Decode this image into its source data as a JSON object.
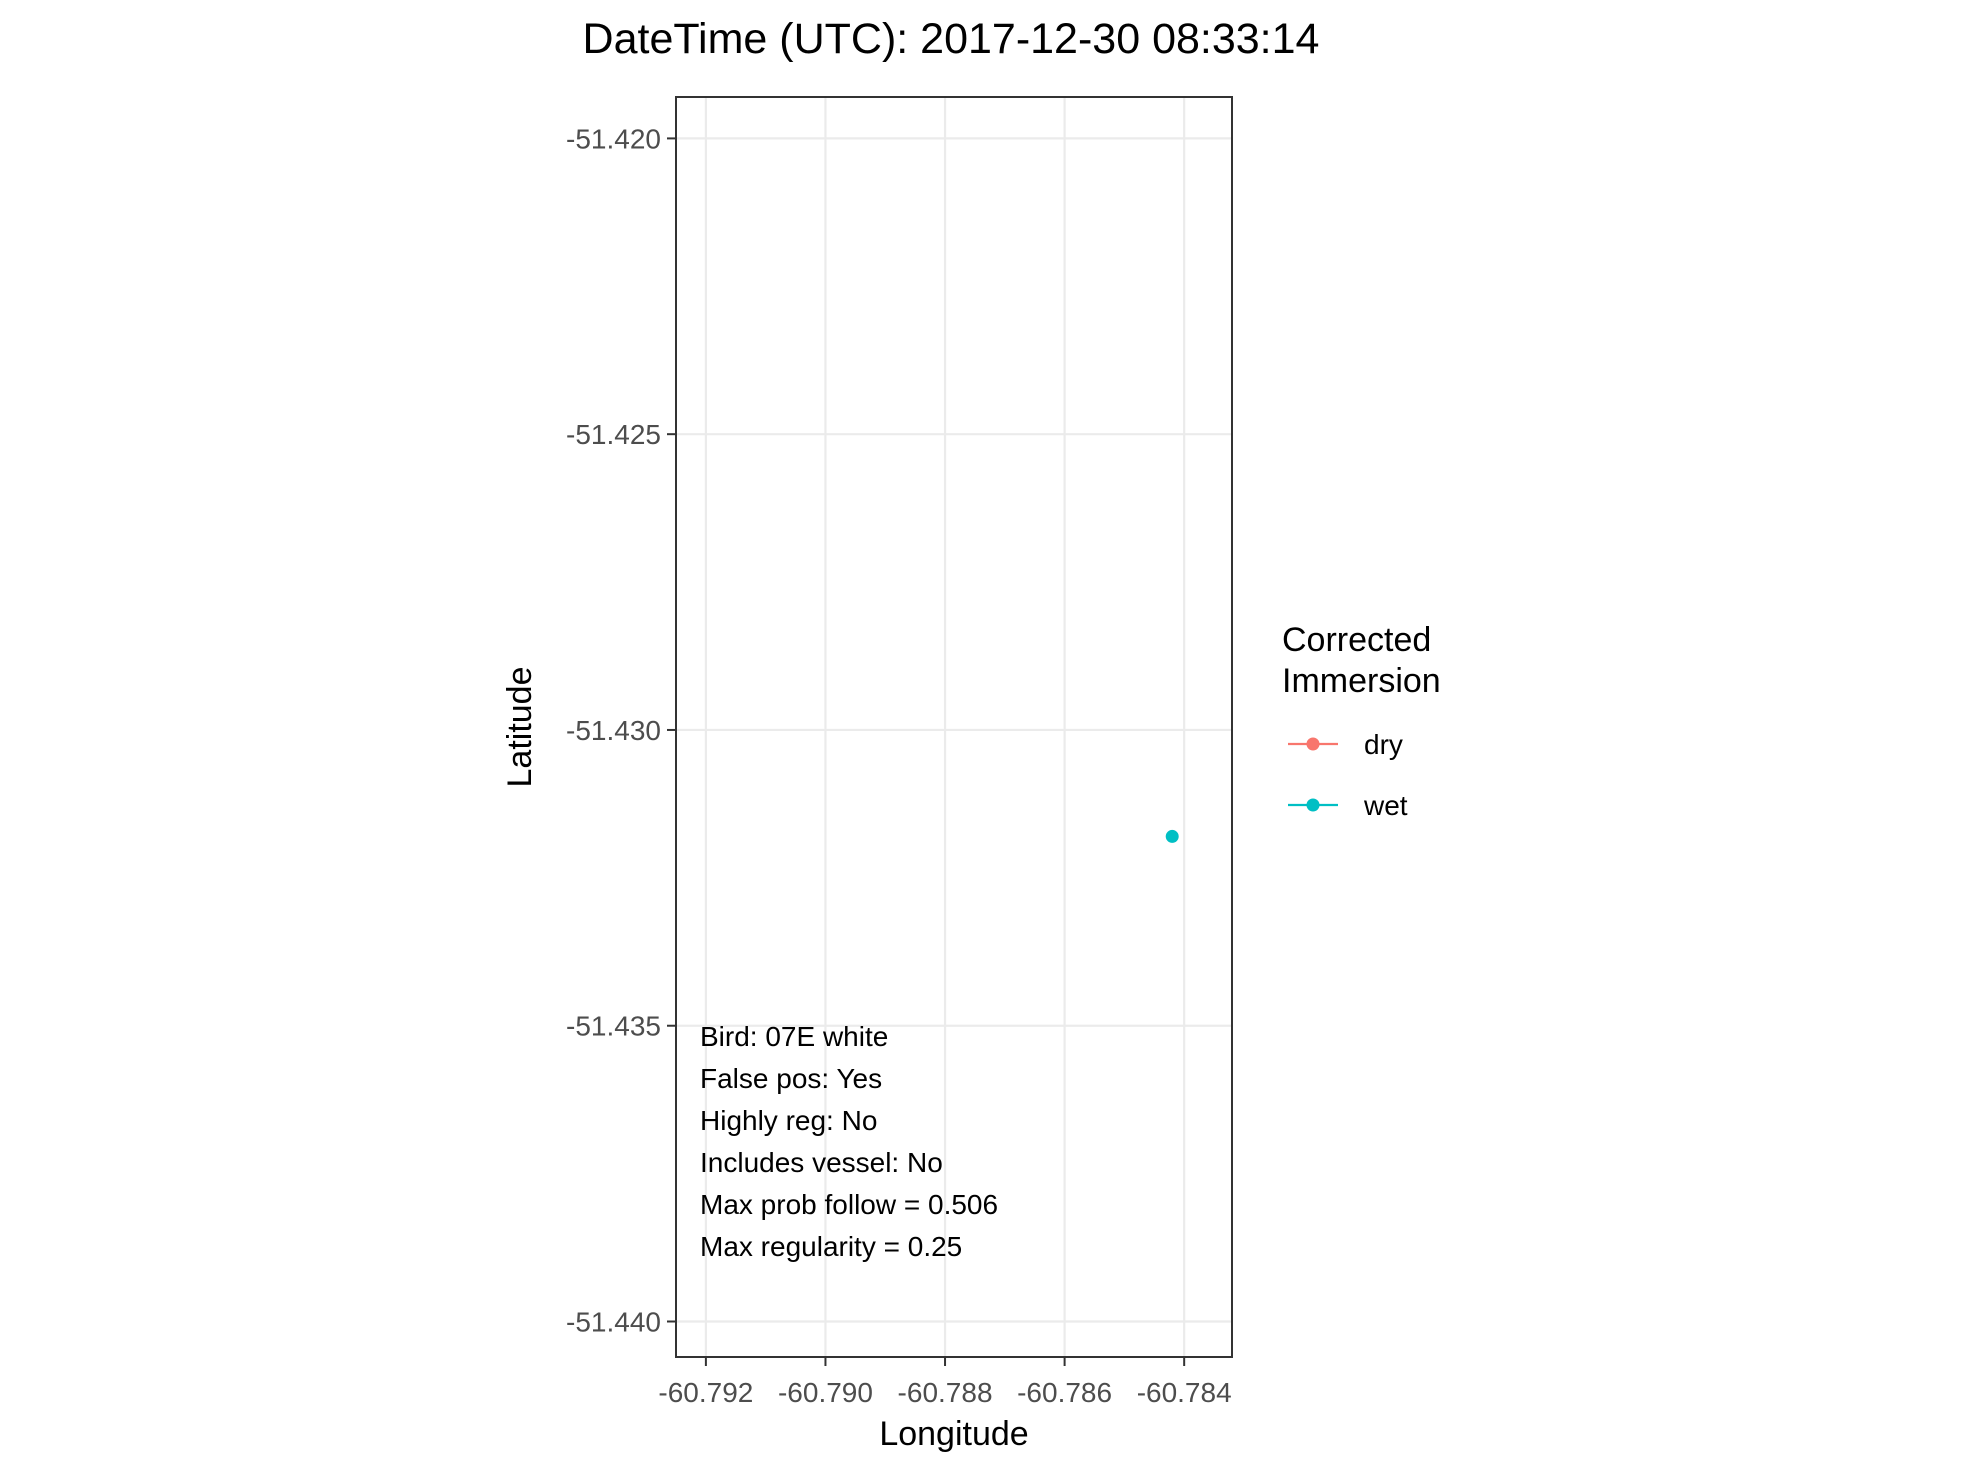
{
  "chart_data": {
    "type": "scatter",
    "title": "DateTime (UTC): 2017-12-30 08:33:14",
    "xlabel": "Longitude",
    "ylabel": "Latitude",
    "xlim": [
      -60.7925,
      -60.7832
    ],
    "ylim": [
      -51.4406,
      -51.4193
    ],
    "x_ticks": [
      -60.792,
      -60.79,
      -60.788,
      -60.786,
      -60.784
    ],
    "x_tick_labels": [
      "-60.792",
      "-60.790",
      "-60.788",
      "-60.786",
      "-60.784"
    ],
    "y_ticks": [
      -51.42,
      -51.425,
      -51.43,
      -51.435,
      -51.44
    ],
    "y_tick_labels": [
      "-51.420",
      "-51.425",
      "-51.430",
      "-51.435",
      "-51.440"
    ],
    "grid": true,
    "legend": {
      "title_lines": [
        "Corrected",
        "Immersion"
      ],
      "placement": "right",
      "entries": [
        {
          "label": "dry",
          "color": "#F8766D"
        },
        {
          "label": "wet",
          "color": "#00BFC4"
        }
      ]
    },
    "series": [
      {
        "name": "wet",
        "color": "#00BFC4",
        "points": [
          {
            "x": -60.7842,
            "y": -51.4318
          }
        ]
      }
    ],
    "annotations": [
      "Bird: 07E white",
      "False pos: Yes",
      "Highly reg: No",
      "Includes vessel: No",
      "Max prob follow = 0.506",
      "Max regularity = 0.25"
    ]
  }
}
